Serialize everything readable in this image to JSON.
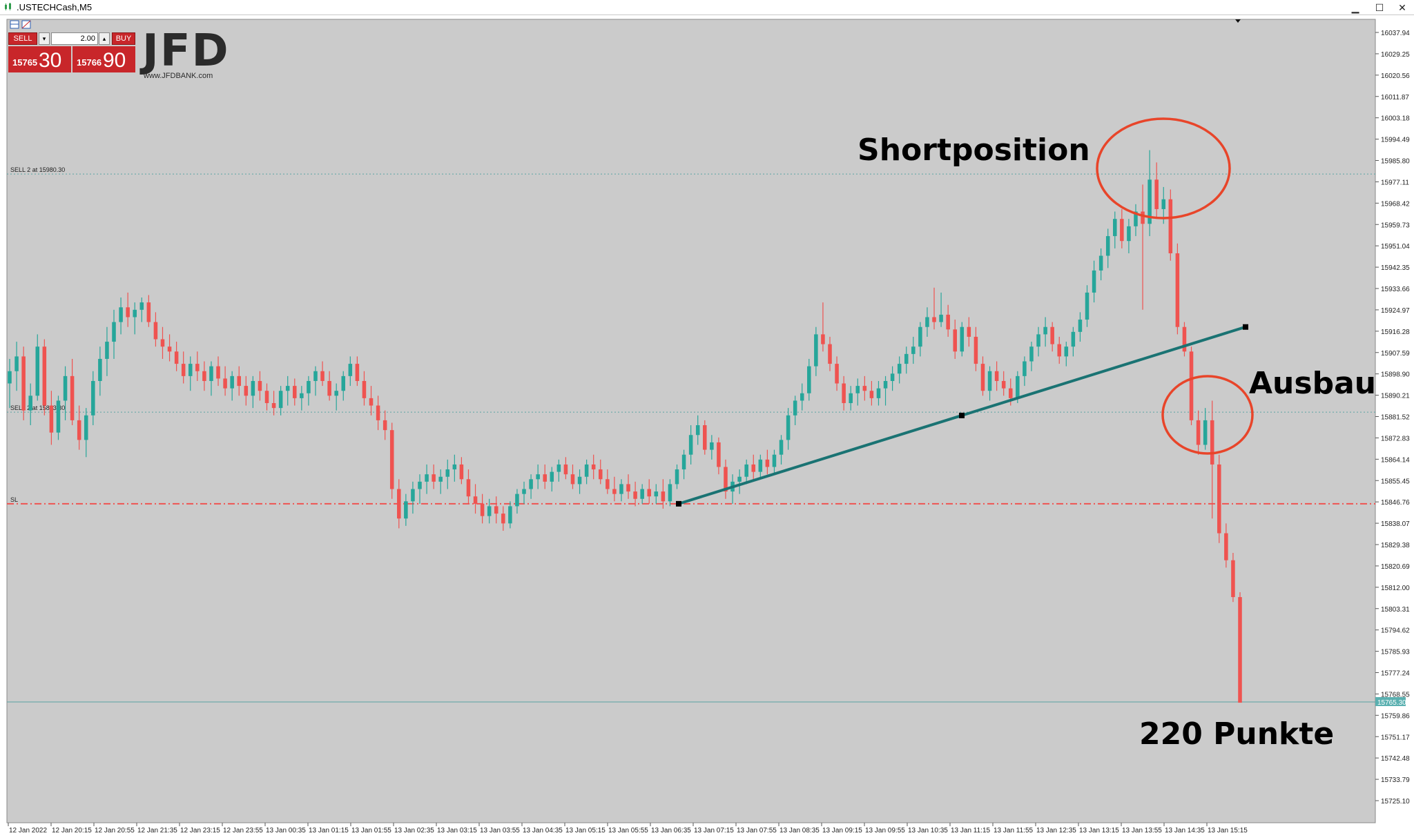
{
  "window": {
    "title": ".USTECHCash,M5",
    "minimize": "▁",
    "maximize": "☐",
    "close": "✕"
  },
  "trade_panel": {
    "sell_label": "SELL",
    "buy_label": "BUY",
    "lot_value": "2.00",
    "sell_price_small": "15765",
    "sell_price_big": "30",
    "buy_price_small": "15766",
    "buy_price_big": "90"
  },
  "logo": {
    "brand": "JFD",
    "url": "www.JFDBANK.com"
  },
  "lines": {
    "sell1_label": "SELL 2 at 15980.30",
    "sell1_price": 15980.3,
    "sell2_label": "SELL 2 at 15883.30",
    "sell2_price": 15883.3,
    "sl_label": "SL",
    "sl_price": 15846.0,
    "current_price": 15765.3,
    "current_price_label": "15765.30"
  },
  "annotations": {
    "shortposition": "Shortposition",
    "ausbau": "Ausbau",
    "points": "220 Punkte"
  },
  "colors": {
    "bull": "#26a69a",
    "bear": "#ef5350",
    "background": "#cbcbcb",
    "trendline": "#1a7373",
    "circle": "#e8452a",
    "sl_line": "#ef5350",
    "dotted_line": "#5aa3a3",
    "price_tag": "#5ab0b0"
  },
  "chart_data": {
    "type": "candlestick",
    "symbol": ".USTECHCash",
    "timeframe": "M5",
    "y_ticks": [
      "16037.94",
      "16029.25",
      "16020.56",
      "16011.87",
      "16003.18",
      "15994.49",
      "15985.80",
      "15977.11",
      "15968.42",
      "15959.73",
      "15951.04",
      "15942.35",
      "15933.66",
      "15924.97",
      "15916.28",
      "15907.59",
      "15898.90",
      "15890.21",
      "15881.52",
      "15872.83",
      "15864.14",
      "15855.45",
      "15846.76",
      "15838.07",
      "15829.38",
      "15820.69",
      "15812.00",
      "15803.31",
      "15794.62",
      "15785.93",
      "15777.24",
      "15768.55",
      "15759.86",
      "15751.17",
      "15742.48",
      "15733.79",
      "15725.10"
    ],
    "ylim": [
      15722,
      16040
    ],
    "x_ticks": [
      "12 Jan 2022",
      "12 Jan 20:15",
      "12 Jan 20:55",
      "12 Jan 21:35",
      "12 Jan 23:15",
      "12 Jan 23:55",
      "13 Jan 00:35",
      "13 Jan 01:15",
      "13 Jan 01:55",
      "13 Jan 02:35",
      "13 Jan 03:15",
      "13 Jan 03:55",
      "13 Jan 04:35",
      "13 Jan 05:15",
      "13 Jan 05:55",
      "13 Jan 06:35",
      "13 Jan 07:15",
      "13 Jan 07:55",
      "13 Jan 08:35",
      "13 Jan 09:15",
      "13 Jan 09:55",
      "13 Jan 10:35",
      "13 Jan 11:15",
      "13 Jan 11:55",
      "13 Jan 12:35",
      "13 Jan 13:15",
      "13 Jan 13:55",
      "13 Jan 14:35",
      "13 Jan 15:15"
    ],
    "candles": [
      [
        15895,
        15905,
        15885,
        15900
      ],
      [
        15900,
        15912,
        15892,
        15906
      ],
      [
        15906,
        15910,
        15880,
        15884
      ],
      [
        15884,
        15895,
        15878,
        15890
      ],
      [
        15890,
        15915,
        15888,
        15910
      ],
      [
        15910,
        15913,
        15882,
        15886
      ],
      [
        15886,
        15892,
        15870,
        15875
      ],
      [
        15875,
        15890,
        15872,
        15888
      ],
      [
        15888,
        15902,
        15880,
        15898
      ],
      [
        15898,
        15905,
        15878,
        15880
      ],
      [
        15880,
        15886,
        15868,
        15872
      ],
      [
        15872,
        15885,
        15865,
        15882
      ],
      [
        15882,
        15900,
        15878,
        15896
      ],
      [
        15896,
        15910,
        15890,
        15905
      ],
      [
        15905,
        15918,
        15898,
        15912
      ],
      [
        15912,
        15925,
        15905,
        15920
      ],
      [
        15920,
        15930,
        15915,
        15926
      ],
      [
        15926,
        15932,
        15918,
        15922
      ],
      [
        15922,
        15928,
        15915,
        15925
      ],
      [
        15925,
        15930,
        15920,
        15928
      ],
      [
        15928,
        15931,
        15918,
        15920
      ],
      [
        15920,
        15924,
        15910,
        15913
      ],
      [
        15913,
        15918,
        15905,
        15910
      ],
      [
        15910,
        15915,
        15904,
        15908
      ],
      [
        15908,
        15912,
        15900,
        15903
      ],
      [
        15903,
        15908,
        15895,
        15898
      ],
      [
        15898,
        15906,
        15892,
        15903
      ],
      [
        15903,
        15908,
        15896,
        15900
      ],
      [
        15900,
        15904,
        15892,
        15896
      ],
      [
        15896,
        15904,
        15890,
        15902
      ],
      [
        15902,
        15906,
        15894,
        15897
      ],
      [
        15897,
        15902,
        15890,
        15893
      ],
      [
        15893,
        15900,
        15888,
        15898
      ],
      [
        15898,
        15902,
        15890,
        15894
      ],
      [
        15894,
        15898,
        15886,
        15890
      ],
      [
        15890,
        15898,
        15885,
        15896
      ],
      [
        15896,
        15900,
        15888,
        15892
      ],
      [
        15892,
        15895,
        15884,
        15887
      ],
      [
        15887,
        15892,
        15882,
        15885
      ],
      [
        15885,
        15894,
        15882,
        15892
      ],
      [
        15892,
        15898,
        15886,
        15894
      ],
      [
        15894,
        15897,
        15886,
        15889
      ],
      [
        15889,
        15894,
        15884,
        15891
      ],
      [
        15891,
        15898,
        15886,
        15896
      ],
      [
        15896,
        15902,
        15890,
        15900
      ],
      [
        15900,
        15904,
        15894,
        15896
      ],
      [
        15896,
        15900,
        15888,
        15890
      ],
      [
        15890,
        15895,
        15884,
        15892
      ],
      [
        15892,
        15900,
        15888,
        15898
      ],
      [
        15898,
        15906,
        15894,
        15903
      ],
      [
        15903,
        15906,
        15894,
        15896
      ],
      [
        15896,
        15900,
        15886,
        15889
      ],
      [
        15889,
        15894,
        15882,
        15886
      ],
      [
        15886,
        15890,
        15876,
        15880
      ],
      [
        15880,
        15884,
        15872,
        15876
      ],
      [
        15876,
        15879,
        15848,
        15852
      ],
      [
        15852,
        15856,
        15836,
        15840
      ],
      [
        15840,
        15850,
        15837,
        15847
      ],
      [
        15847,
        15855,
        15842,
        15852
      ],
      [
        15852,
        15858,
        15846,
        15855
      ],
      [
        15855,
        15862,
        15850,
        15858
      ],
      [
        15858,
        15862,
        15852,
        15855
      ],
      [
        15855,
        15860,
        15850,
        15857
      ],
      [
        15857,
        15864,
        15852,
        15860
      ],
      [
        15860,
        15866,
        15855,
        15862
      ],
      [
        15862,
        15865,
        15854,
        15856
      ],
      [
        15856,
        15860,
        15846,
        15849
      ],
      [
        15849,
        15854,
        15842,
        15846
      ],
      [
        15846,
        15850,
        15838,
        15841
      ],
      [
        15841,
        15848,
        15838,
        15845
      ],
      [
        15845,
        15849,
        15838,
        15842
      ],
      [
        15842,
        15845,
        15835,
        15838
      ],
      [
        15838,
        15847,
        15836,
        15845
      ],
      [
        15845,
        15852,
        15842,
        15850
      ],
      [
        15850,
        15855,
        15846,
        15852
      ],
      [
        15852,
        15858,
        15848,
        15856
      ],
      [
        15856,
        15862,
        15852,
        15858
      ],
      [
        15858,
        15862,
        15852,
        15855
      ],
      [
        15855,
        15861,
        15851,
        15859
      ],
      [
        15859,
        15864,
        15855,
        15862
      ],
      [
        15862,
        15865,
        15856,
        15858
      ],
      [
        15858,
        15862,
        15852,
        15854
      ],
      [
        15854,
        15860,
        15850,
        15857
      ],
      [
        15857,
        15864,
        15854,
        15862
      ],
      [
        15862,
        15866,
        15856,
        15860
      ],
      [
        15860,
        15864,
        15854,
        15856
      ],
      [
        15856,
        15860,
        15850,
        15852
      ],
      [
        15852,
        15857,
        15847,
        15850
      ],
      [
        15850,
        15856,
        15847,
        15854
      ],
      [
        15854,
        15858,
        15848,
        15851
      ],
      [
        15851,
        15855,
        15845,
        15848
      ],
      [
        15848,
        15854,
        15846,
        15852
      ],
      [
        15852,
        15856,
        15846,
        15849
      ],
      [
        15849,
        15854,
        15846,
        15851
      ],
      [
        15851,
        15856,
        15844,
        15847
      ],
      [
        15847,
        15856,
        15845,
        15854
      ],
      [
        15854,
        15862,
        15852,
        15860
      ],
      [
        15860,
        15868,
        15856,
        15866
      ],
      [
        15866,
        15878,
        15862,
        15874
      ],
      [
        15874,
        15882,
        15870,
        15878
      ],
      [
        15878,
        15880,
        15866,
        15868
      ],
      [
        15868,
        15874,
        15864,
        15871
      ],
      [
        15871,
        15873,
        15858,
        15861
      ],
      [
        15861,
        15864,
        15848,
        15851
      ],
      [
        15851,
        15858,
        15846,
        15855
      ],
      [
        15855,
        15860,
        15850,
        15857
      ],
      [
        15857,
        15864,
        15854,
        15862
      ],
      [
        15862,
        15866,
        15856,
        15859
      ],
      [
        15859,
        15866,
        15856,
        15864
      ],
      [
        15864,
        15868,
        15858,
        15861
      ],
      [
        15861,
        15868,
        15858,
        15866
      ],
      [
        15866,
        15874,
        15862,
        15872
      ],
      [
        15872,
        15885,
        15868,
        15882
      ],
      [
        15882,
        15890,
        15878,
        15888
      ],
      [
        15888,
        15895,
        15884,
        15891
      ],
      [
        15891,
        15905,
        15888,
        15902
      ],
      [
        15902,
        15918,
        15898,
        15915
      ],
      [
        15915,
        15928,
        15908,
        15911
      ],
      [
        15911,
        15914,
        15900,
        15903
      ],
      [
        15903,
        15906,
        15892,
        15895
      ],
      [
        15895,
        15898,
        15884,
        15887
      ],
      [
        15887,
        15894,
        15884,
        15891
      ],
      [
        15891,
        15897,
        15886,
        15894
      ],
      [
        15894,
        15898,
        15888,
        15892
      ],
      [
        15892,
        15896,
        15886,
        15889
      ],
      [
        15889,
        15896,
        15886,
        15893
      ],
      [
        15893,
        15898,
        15886,
        15896
      ],
      [
        15896,
        15902,
        15892,
        15899
      ],
      [
        15899,
        15906,
        15895,
        15903
      ],
      [
        15903,
        15910,
        15899,
        15907
      ],
      [
        15907,
        15914,
        15903,
        15910
      ],
      [
        15910,
        15920,
        15906,
        15918
      ],
      [
        15918,
        15926,
        15914,
        15922
      ],
      [
        15922,
        15934,
        15917,
        15920
      ],
      [
        15920,
        15932,
        15918,
        15923
      ],
      [
        15923,
        15927,
        15914,
        15917
      ],
      [
        15917,
        15921,
        15905,
        15908
      ],
      [
        15908,
        15920,
        15906,
        15918
      ],
      [
        15918,
        15922,
        15910,
        15914
      ],
      [
        15914,
        15918,
        15900,
        15903
      ],
      [
        15903,
        15906,
        15890,
        15892
      ],
      [
        15892,
        15902,
        15888,
        15900
      ],
      [
        15900,
        15904,
        15892,
        15896
      ],
      [
        15896,
        15900,
        15890,
        15893
      ],
      [
        15893,
        15897,
        15886,
        15889
      ],
      [
        15889,
        15900,
        15887,
        15898
      ],
      [
        15898,
        15906,
        15894,
        15904
      ],
      [
        15904,
        15912,
        15900,
        15910
      ],
      [
        15910,
        15918,
        15906,
        15915
      ],
      [
        15915,
        15922,
        15910,
        15918
      ],
      [
        15918,
        15920,
        15908,
        15911
      ],
      [
        15911,
        15914,
        15903,
        15906
      ],
      [
        15906,
        15912,
        15902,
        15910
      ],
      [
        15910,
        15918,
        15906,
        15916
      ],
      [
        15916,
        15924,
        15912,
        15921
      ],
      [
        15921,
        15935,
        15918,
        15932
      ],
      [
        15932,
        15945,
        15928,
        15941
      ],
      [
        15941,
        15950,
        15937,
        15947
      ],
      [
        15947,
        15958,
        15942,
        15955
      ],
      [
        15955,
        15965,
        15950,
        15962
      ],
      [
        15962,
        15966,
        15950,
        15953
      ],
      [
        15953,
        15962,
        15948,
        15959
      ],
      [
        15959,
        15968,
        15955,
        15965
      ],
      [
        15965,
        15976,
        15925,
        15960
      ],
      [
        15960,
        15990,
        15955,
        15978
      ],
      [
        15978,
        15985,
        15962,
        15966
      ],
      [
        15966,
        15975,
        15960,
        15970
      ],
      [
        15970,
        15974,
        15945,
        15948
      ],
      [
        15948,
        15952,
        15915,
        15918
      ],
      [
        15918,
        15920,
        15906,
        15908
      ],
      [
        15908,
        15910,
        15878,
        15880
      ],
      [
        15880,
        15884,
        15866,
        15870
      ],
      [
        15870,
        15885,
        15868,
        15880
      ],
      [
        15880,
        15888,
        15840,
        15862
      ],
      [
        15862,
        15866,
        15830,
        15834
      ],
      [
        15834,
        15838,
        15820,
        15823
      ],
      [
        15823,
        15826,
        15806,
        15808
      ],
      [
        15808,
        15810,
        15765,
        15765
      ]
    ]
  }
}
